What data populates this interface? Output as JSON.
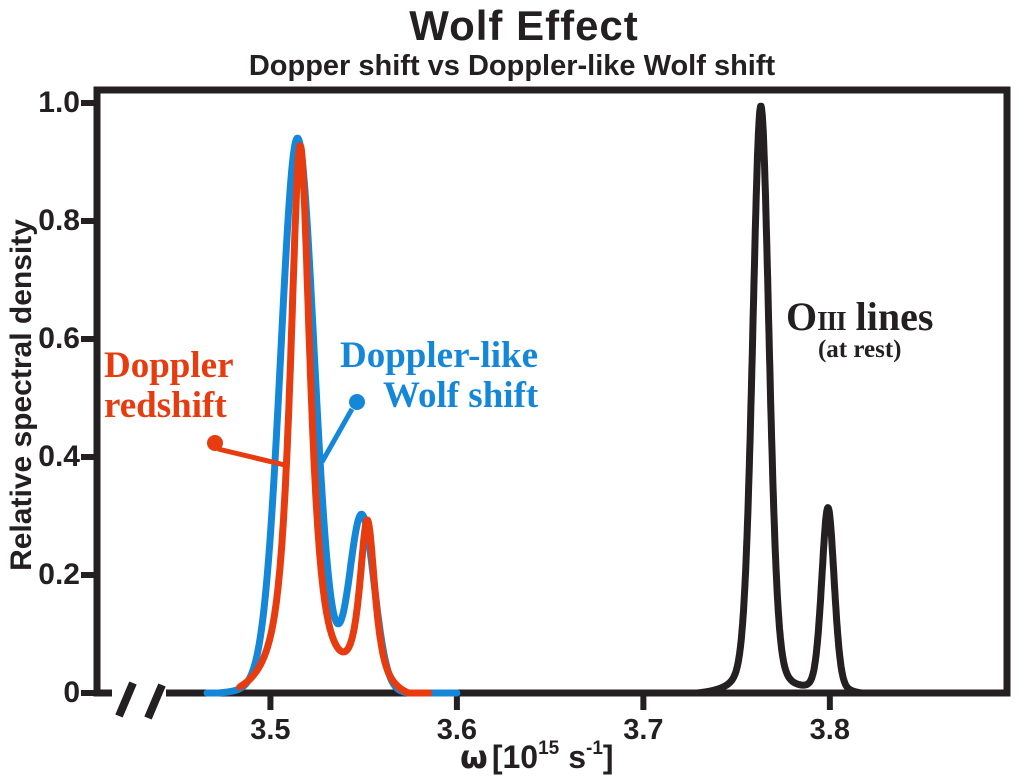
{
  "title": "Wolf Effect",
  "subtitle": "Dopper shift vs Doppler-like Wolf shift",
  "colors": {
    "red": "#e63c0f",
    "blue": "#1587d8",
    "ink": "#241f20",
    "background": "#ffffff"
  },
  "y_axis": {
    "label": "Relative spectral density",
    "ticks": [
      "1.0",
      "0.8",
      "0.6",
      "0.4",
      "0.2",
      "0"
    ]
  },
  "x_axis": {
    "ticks": [
      "3.5",
      "3.6",
      "3.7",
      "3.8"
    ],
    "label_omega": "ω",
    "label_open": "[10",
    "label_exp": "15",
    "label_unit": "s",
    "label_unit_exp": "-1",
    "label_close": "]"
  },
  "annotations": {
    "doppler_line1": "Doppler",
    "doppler_line2": "redshift",
    "wolf_line1": "Doppler-like",
    "wolf_line2": "Wolf shift",
    "oiii_o": "O",
    "oiii_roman": "III",
    "oiii_lines": " lines",
    "oiii_rest": "(at rest)"
  },
  "chart_data": {
    "type": "line",
    "title": "Wolf Effect",
    "subtitle": "Dopper shift vs Doppler-like Wolf shift",
    "xlabel": "ω [10^15 s^-1]",
    "ylabel": "Relative spectral density",
    "xlim": [
      3.407,
      3.895
    ],
    "ylim": [
      0,
      1.0
    ],
    "x_tick_values": [
      3.5,
      3.6,
      3.7,
      3.8
    ],
    "y_tick_values": [
      0,
      0.2,
      0.4,
      0.6,
      0.8,
      1.0
    ],
    "axis_break_on_x": true,
    "grid": false,
    "legend_position": "annotations-inside-plot",
    "series": [
      {
        "name": "Doppler redshift",
        "color": "#e63c0f",
        "z": 1,
        "profile": "pseudo-voigt",
        "peaks": [
          {
            "center": 3.516,
            "height": 0.92,
            "fwhm": 0.013,
            "model_amplitude": 0.945,
            "lorentz_fraction": 0.85
          },
          {
            "center": 3.552,
            "height": 0.29,
            "fwhm": 0.01,
            "model_amplitude": 0.29,
            "lorentz_fraction": 0.85
          }
        ],
        "baseline_floor": 0.022,
        "draw_range": [
          3.4835,
          3.585
        ]
      },
      {
        "name": "Doppler-like Wolf shift",
        "color": "#1587d8",
        "z": 0,
        "profile": "pseudo-voigt",
        "peaks": [
          {
            "center": 3.5145,
            "height": 0.93,
            "fwhm": 0.0215,
            "model_amplitude": 0.945,
            "lorentz_fraction": 0.1
          },
          {
            "center": 3.549,
            "height": 0.3,
            "fwhm": 0.016,
            "model_amplitude": 0.3,
            "lorentz_fraction": 0.1
          }
        ],
        "baseline_floor": 0.006,
        "draw_range": [
          3.466,
          3.6
        ]
      },
      {
        "name": "O III lines (at rest)",
        "color": "#241f20",
        "z": 2,
        "profile": "pseudo-voigt",
        "peaks": [
          {
            "center": 3.763,
            "height": 0.99,
            "fwhm": 0.0105,
            "model_amplitude": 1.0,
            "lorentz_fraction": 0.25
          },
          {
            "center": 3.799,
            "height": 0.31,
            "fwhm": 0.008,
            "model_amplitude": 0.315,
            "lorentz_fraction": 0.25
          }
        ],
        "baseline_floor": 0.006,
        "draw_range": [
          3.727,
          3.845
        ]
      }
    ]
  }
}
